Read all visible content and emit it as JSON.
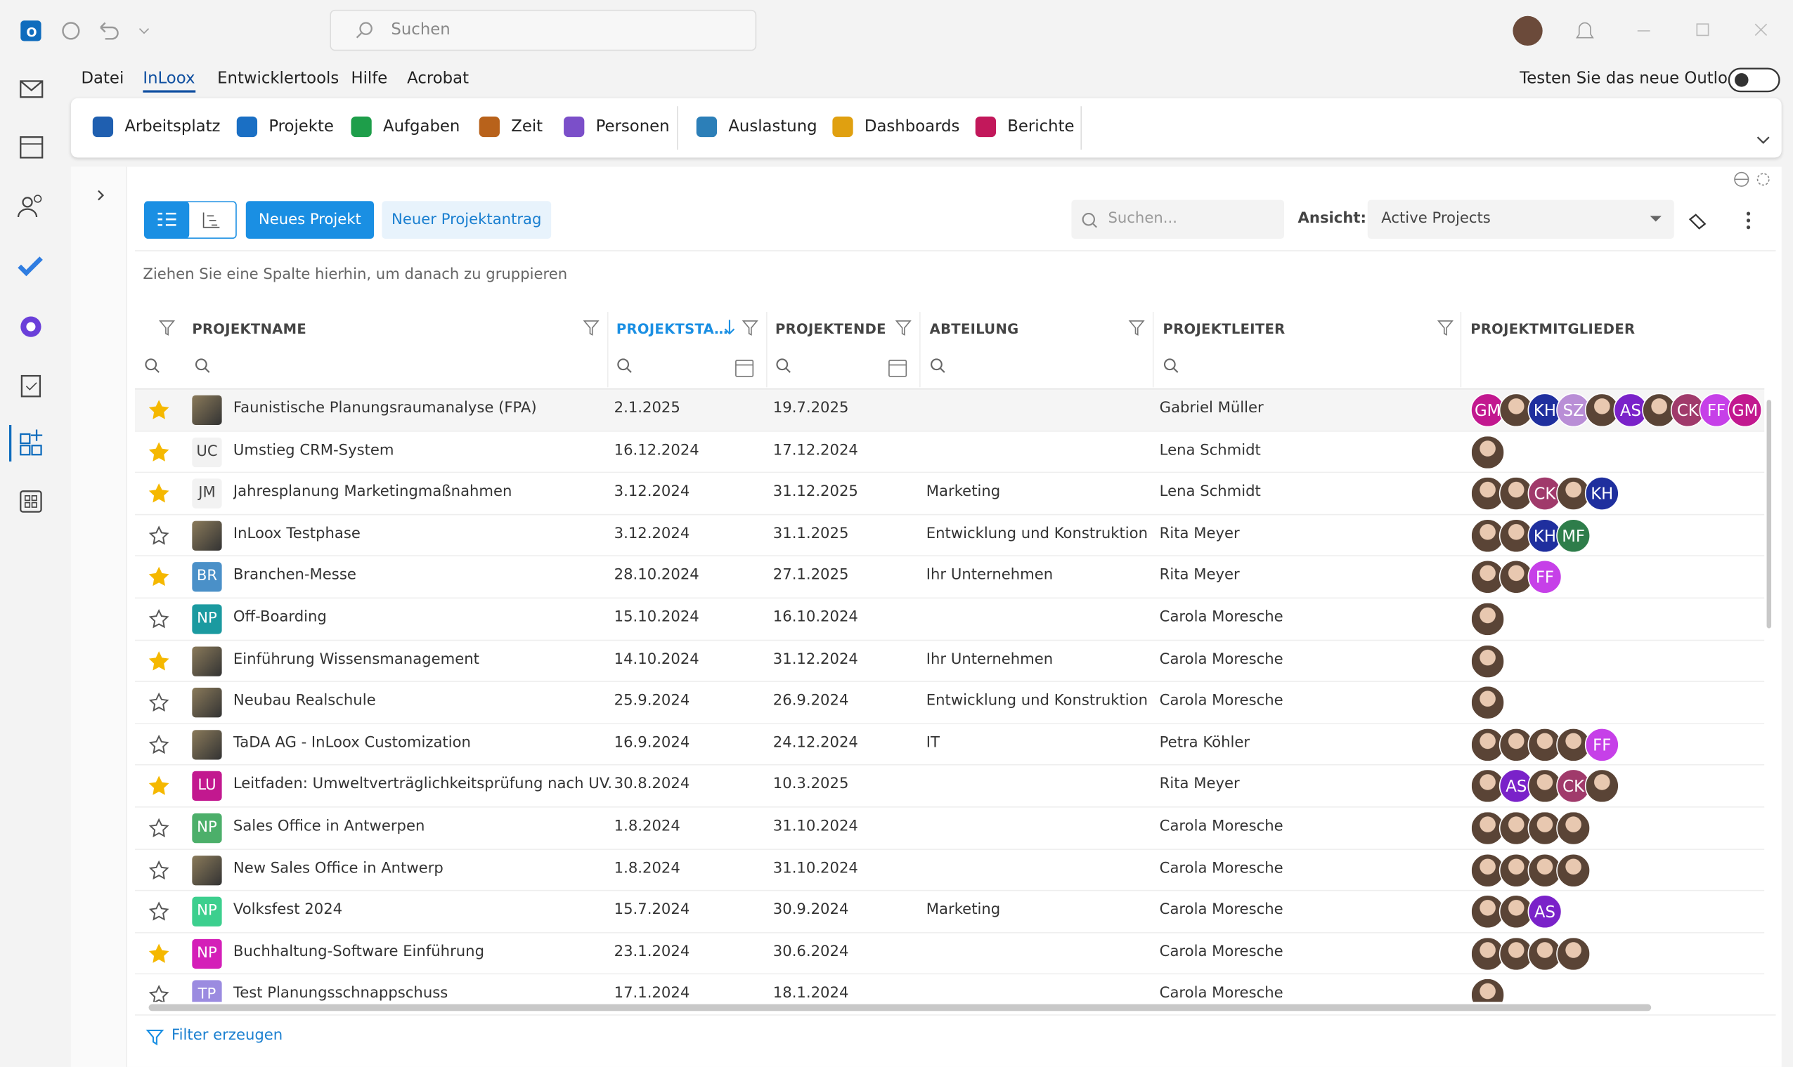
{
  "titlebar": {
    "search": "Suchen"
  },
  "menu": [
    "Datei",
    "InLoox",
    "Entwicklertools",
    "Hilfe",
    "Acrobat"
  ],
  "menu_active": 1,
  "outlook_toggle": "Testen Sie das neue Outlook",
  "ribbon": [
    {
      "label": "Arbeitsplatz",
      "color": "#1f5fb0"
    },
    {
      "label": "Projekte",
      "color": "#1a6fc4"
    },
    {
      "label": "Aufgaben",
      "color": "#1e9e4a"
    },
    {
      "label": "Zeit",
      "color": "#b8621b"
    },
    {
      "label": "Personen",
      "color": "#7b4fc9"
    },
    {
      "label": "Auslastung",
      "color": "#2c7fb8"
    },
    {
      "label": "Dashboards",
      "color": "#e0a010"
    },
    {
      "label": "Berichte",
      "color": "#c2185b"
    }
  ],
  "toolbar": {
    "new_project": "Neues Projekt",
    "new_request": "Neuer Projektantrag",
    "search": "Suchen...",
    "view_label": "Ansicht:",
    "view": "Active Projects"
  },
  "group_hint": "Ziehen Sie eine Spalte hierhin, um danach zu gruppieren",
  "table": {
    "columns": [
      {
        "label": "PROJEKTNAME"
      },
      {
        "label": "PROJEKTSTA…",
        "sorted": true
      },
      {
        "label": "PROJEKTENDE"
      },
      {
        "label": "ABTEILUNG"
      },
      {
        "label": "PROJEKTLEITER"
      },
      {
        "label": "PROJEKTMITGLIEDER"
      }
    ],
    "rows": [
      {
        "favorite": true,
        "icon": null,
        "name": "Faunistische Planungsraumanalyse (FPA)",
        "start": "2.1.2025",
        "end": "19.7.2025",
        "department": null,
        "leader": "Gabriel Müller",
        "members": [
          {
            "initials": "GM",
            "color": "#c2188f"
          },
          null,
          {
            "initials": "KH",
            "color": "#1f2f9e"
          },
          {
            "initials": "SZ",
            "color": "#b98ed6"
          },
          null,
          {
            "initials": "AS",
            "color": "#7a22c9"
          },
          null,
          {
            "initials": "CK",
            "color": "#a03a6b"
          },
          {
            "initials": "FF",
            "color": "#c640e8"
          },
          {
            "initials": "GM",
            "color": "#c2188f"
          }
        ]
      },
      {
        "favorite": true,
        "icon": {
          "label": "UC",
          "color": "#f2f2f2"
        },
        "name": "Umstieg CRM-System",
        "start": "16.12.2024",
        "end": "17.12.2024",
        "department": null,
        "leader": "Lena Schmidt",
        "members": [
          null
        ]
      },
      {
        "favorite": true,
        "icon": {
          "label": "JM",
          "color": "#f2f2f2"
        },
        "name": "Jahresplanung Marketingmaßnahmen",
        "start": "3.12.2024",
        "end": "31.12.2025",
        "department": "Marketing",
        "leader": "Lena Schmidt",
        "members": [
          null,
          null,
          {
            "initials": "CK",
            "color": "#a03a6b"
          },
          null,
          {
            "initials": "KH",
            "color": "#1f2f9e"
          }
        ]
      },
      {
        "favorite": false,
        "icon": null,
        "name": "InLoox Testphase",
        "start": "3.12.2024",
        "end": "31.1.2025",
        "department": "Entwicklung und Konstruktion",
        "leader": "Rita Meyer",
        "members": [
          null,
          null,
          {
            "initials": "KH",
            "color": "#1f2f9e"
          },
          {
            "initials": "MF",
            "color": "#2e7d4a"
          }
        ]
      },
      {
        "favorite": true,
        "icon": {
          "label": "BR",
          "color": "#4a90c8"
        },
        "name": "Branchen-Messe",
        "start": "28.10.2024",
        "end": "27.1.2025",
        "department": "Ihr Unternehmen",
        "leader": "Rita Meyer",
        "members": [
          null,
          null,
          {
            "initials": "FF",
            "color": "#c640e8"
          }
        ]
      },
      {
        "favorite": false,
        "icon": {
          "label": "NP",
          "color": "#1b9aa0"
        },
        "name": "Off-Boarding",
        "start": "15.10.2024",
        "end": "16.10.2024",
        "department": null,
        "leader": "Carola Moresche",
        "members": [
          null
        ]
      },
      {
        "favorite": true,
        "icon": null,
        "name": "Einführung Wissensmanagement",
        "start": "14.10.2024",
        "end": "31.12.2024",
        "department": "Ihr Unternehmen",
        "leader": "Carola Moresche",
        "members": [
          null
        ]
      },
      {
        "favorite": false,
        "icon": null,
        "name": "Neubau Realschule",
        "start": "25.9.2024",
        "end": "26.9.2024",
        "department": "Entwicklung und Konstruktion",
        "leader": "Carola Moresche",
        "members": [
          null
        ]
      },
      {
        "favorite": false,
        "icon": null,
        "name": "TaDA AG - InLoox Customization",
        "start": "16.9.2024",
        "end": "24.12.2024",
        "department": "IT",
        "leader": "Petra Köhler",
        "members": [
          null,
          null,
          null,
          null,
          {
            "initials": "FF",
            "color": "#c640e8"
          }
        ]
      },
      {
        "favorite": true,
        "icon": {
          "label": "LU",
          "color": "#c2188f"
        },
        "name": "Leitfaden: Umweltverträglichkeitsprüfung nach UV...",
        "start": "30.8.2024",
        "end": "10.3.2025",
        "department": null,
        "leader": "Rita Meyer",
        "members": [
          null,
          {
            "initials": "AS",
            "color": "#7a22c9"
          },
          null,
          {
            "initials": "CK",
            "color": "#a03a6b"
          },
          null
        ]
      },
      {
        "favorite": false,
        "icon": {
          "label": "NP",
          "color": "#4caf6a"
        },
        "name": "Sales Office in Antwerpen",
        "start": "1.8.2024",
        "end": "31.10.2024",
        "department": null,
        "leader": "Carola Moresche",
        "members": [
          null,
          null,
          null,
          null
        ]
      },
      {
        "favorite": false,
        "icon": null,
        "name": "New Sales Office in Antwerp",
        "start": "1.8.2024",
        "end": "31.10.2024",
        "department": null,
        "leader": "Carola Moresche",
        "members": [
          null,
          null,
          null,
          null
        ]
      },
      {
        "favorite": false,
        "icon": {
          "label": "NP",
          "color": "#3ccf8e"
        },
        "name": "Volksfest 2024",
        "start": "15.7.2024",
        "end": "30.9.2024",
        "department": "Marketing",
        "leader": "Carola Moresche",
        "members": [
          null,
          null,
          {
            "initials": "AS",
            "color": "#7a22c9"
          }
        ]
      },
      {
        "favorite": true,
        "icon": {
          "label": "NP",
          "color": "#d41fb8"
        },
        "name": "Buchhaltung-Software Einführung",
        "start": "23.1.2024",
        "end": "30.6.2024",
        "department": null,
        "leader": "Carola Moresche",
        "members": [
          null,
          null,
          null,
          null
        ]
      },
      {
        "favorite": false,
        "icon": {
          "label": "TP",
          "color": "#9b8be0"
        },
        "name": "Test Planungsschnappschuss",
        "start": "17.1.2024",
        "end": "18.1.2024",
        "department": null,
        "leader": "Carola Moresche",
        "members": [
          null
        ]
      }
    ]
  },
  "footer": "Filter erzeugen"
}
